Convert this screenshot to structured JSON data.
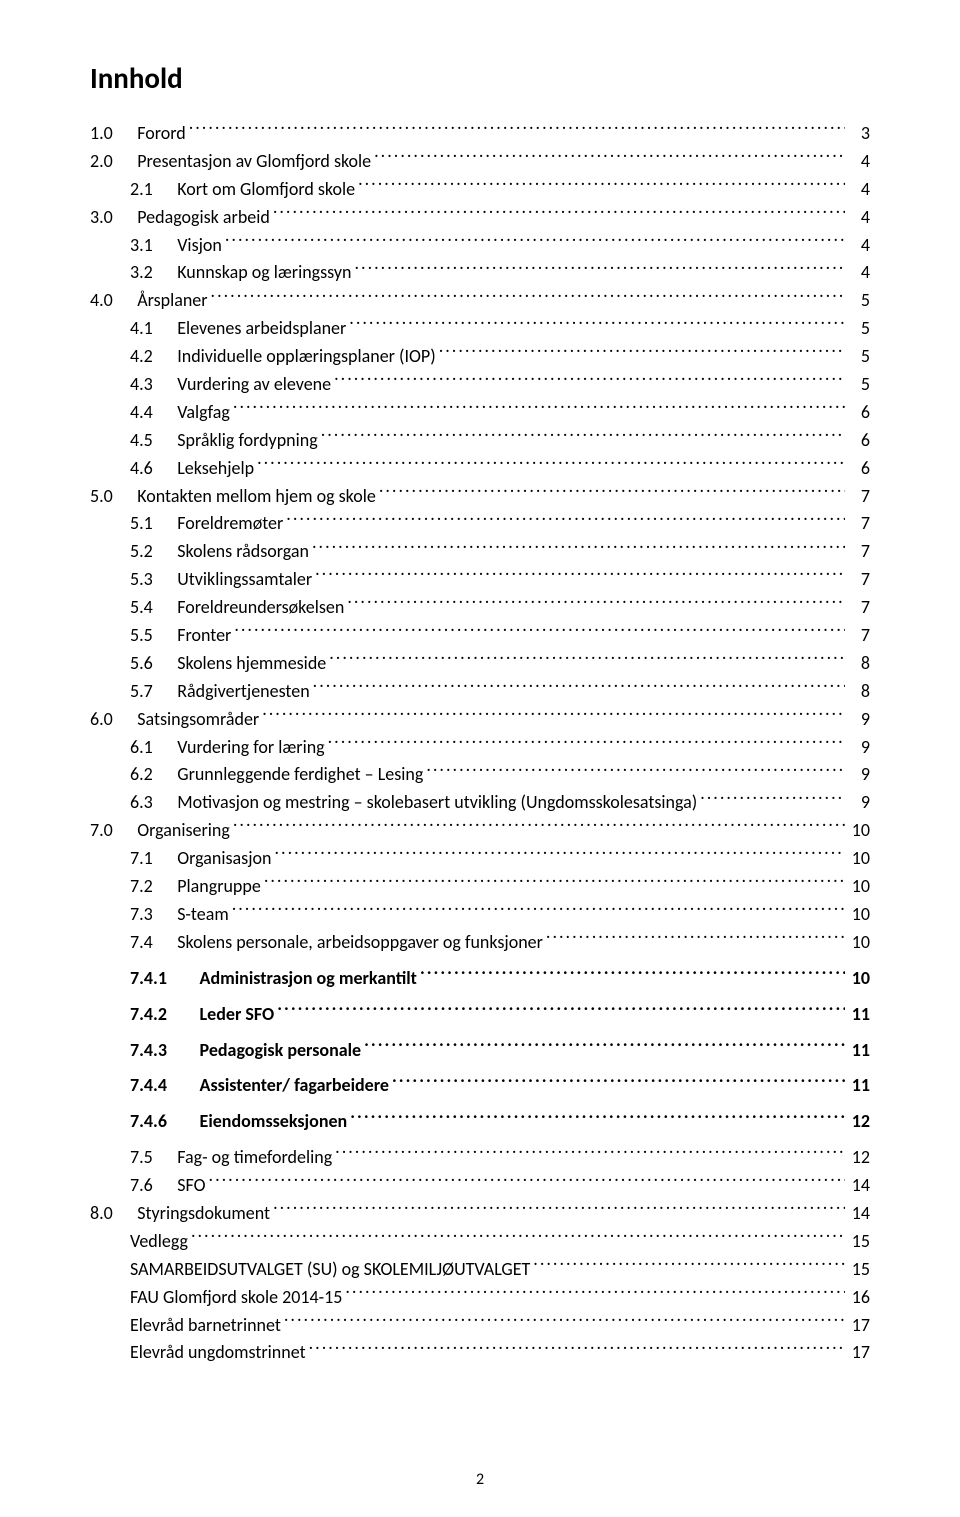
{
  "doc": {
    "title": "Innhold",
    "pageNumber": "2"
  },
  "toc": [
    {
      "indent": 0,
      "bold": false,
      "num": "1.0",
      "gap": "      ",
      "label": "Forord",
      "page": "3"
    },
    {
      "indent": 0,
      "bold": false,
      "num": "2.0",
      "gap": "      ",
      "label": "Presentasjon av Glomfjord skole",
      "page": "4"
    },
    {
      "indent": 1,
      "bold": false,
      "num": "2.1",
      "gap": "      ",
      "label": "Kort om Glomfjord skole",
      "page": "4"
    },
    {
      "indent": 0,
      "bold": false,
      "num": "3.0",
      "gap": "      ",
      "label": "Pedagogisk arbeid",
      "page": "4"
    },
    {
      "indent": 1,
      "bold": false,
      "num": "3.1",
      "gap": "      ",
      "label": "Visjon",
      "page": "4"
    },
    {
      "indent": 1,
      "bold": false,
      "num": "3.2",
      "gap": "      ",
      "label": "Kunnskap og læringssyn",
      "page": "4"
    },
    {
      "indent": 0,
      "bold": false,
      "num": "4.0",
      "gap": "      ",
      "label": "Årsplaner",
      "page": "5"
    },
    {
      "indent": 1,
      "bold": false,
      "num": "4.1",
      "gap": "      ",
      "label": "Elevenes arbeidsplaner",
      "page": "5"
    },
    {
      "indent": 1,
      "bold": false,
      "num": "4.2",
      "gap": "      ",
      "label": "Individuelle opplæringsplaner (IOP)",
      "page": "5"
    },
    {
      "indent": 1,
      "bold": false,
      "num": "4.3",
      "gap": "      ",
      "label": "Vurdering av elevene",
      "page": "5"
    },
    {
      "indent": 1,
      "bold": false,
      "num": "4.4",
      "gap": "      ",
      "label": "Valgfag",
      "page": "6"
    },
    {
      "indent": 1,
      "bold": false,
      "num": "4.5",
      "gap": "      ",
      "label": "Språklig fordypning",
      "page": "6"
    },
    {
      "indent": 1,
      "bold": false,
      "num": "4.6",
      "gap": "      ",
      "label": "Leksehjelp",
      "page": "6"
    },
    {
      "indent": 0,
      "bold": false,
      "num": "5.0",
      "gap": "      ",
      "label": "Kontakten mellom hjem og skole",
      "page": "7"
    },
    {
      "indent": 1,
      "bold": false,
      "num": "5.1",
      "gap": "      ",
      "label": "Foreldremøter",
      "page": "7"
    },
    {
      "indent": 1,
      "bold": false,
      "num": "5.2",
      "gap": "      ",
      "label": "Skolens rådsorgan",
      "page": "7"
    },
    {
      "indent": 1,
      "bold": false,
      "num": "5.3",
      "gap": "      ",
      "label": "Utviklingssamtaler",
      "page": "7"
    },
    {
      "indent": 1,
      "bold": false,
      "num": "5.4",
      "gap": "      ",
      "label": "Foreldreundersøkelsen",
      "page": "7"
    },
    {
      "indent": 1,
      "bold": false,
      "num": "5.5",
      "gap": "      ",
      "label": "Fronter",
      "page": "7"
    },
    {
      "indent": 1,
      "bold": false,
      "num": "5.6",
      "gap": "      ",
      "label": "Skolens hjemmeside",
      "page": "8"
    },
    {
      "indent": 1,
      "bold": false,
      "num": "5.7",
      "gap": "      ",
      "label": "Rådgivertjenesten",
      "page": "8"
    },
    {
      "indent": 0,
      "bold": false,
      "num": "6.0",
      "gap": "      ",
      "label": "Satsingsområder",
      "page": "9"
    },
    {
      "indent": 1,
      "bold": false,
      "num": "6.1",
      "gap": "      ",
      "label": "Vurdering for læring",
      "page": "9"
    },
    {
      "indent": 1,
      "bold": false,
      "num": "6.2",
      "gap": "      ",
      "label": "Grunnleggende ferdighet – Lesing",
      "page": "9"
    },
    {
      "indent": 1,
      "bold": false,
      "num": "6.3",
      "gap": "      ",
      "label": "Motivasjon og mestring – skolebasert utvikling (Ungdomsskolesatsinga)",
      "page": "9"
    },
    {
      "indent": 0,
      "bold": false,
      "num": "7.0",
      "gap": "      ",
      "label": "Organisering",
      "page": "10"
    },
    {
      "indent": 1,
      "bold": false,
      "num": "7.1",
      "gap": "      ",
      "label": "Organisasjon",
      "page": "10"
    },
    {
      "indent": 1,
      "bold": false,
      "num": "7.2",
      "gap": "      ",
      "label": "Plangruppe",
      "page": "10"
    },
    {
      "indent": 1,
      "bold": false,
      "num": "7.3",
      "gap": "      ",
      "label": "S-team",
      "page": "10"
    },
    {
      "indent": 1,
      "bold": false,
      "num": "7.4",
      "gap": "      ",
      "label": "Skolens personale, arbeidsoppgaver og funksjoner",
      "page": "10"
    },
    {
      "indent": 2,
      "bold": true,
      "num": "7.4.1",
      "gap": "        ",
      "label": "Administrasjon og merkantilt",
      "page": "10"
    },
    {
      "indent": 2,
      "bold": true,
      "num": "7.4.2",
      "gap": "        ",
      "label": "Leder SFO",
      "page": "11"
    },
    {
      "indent": 2,
      "bold": true,
      "num": "7.4.3",
      "gap": "        ",
      "label": "Pedagogisk personale",
      "page": "11"
    },
    {
      "indent": 2,
      "bold": true,
      "num": "7.4.4",
      "gap": "        ",
      "label": "Assistenter/ fagarbeidere",
      "page": "11"
    },
    {
      "indent": 2,
      "bold": true,
      "num": "7.4.6",
      "gap": "        ",
      "label": "Eiendomsseksjonen",
      "page": "12"
    },
    {
      "indent": 1,
      "bold": false,
      "num": "7.5",
      "gap": "      ",
      "label": "Fag- og timefordeling",
      "page": "12"
    },
    {
      "indent": 1,
      "bold": false,
      "num": "7.6",
      "gap": "      ",
      "label": "SFO",
      "page": "14"
    },
    {
      "indent": 0,
      "bold": false,
      "num": "8.0",
      "gap": "      ",
      "label": "Styringsdokument",
      "page": "14"
    },
    {
      "indent": 1,
      "bold": false,
      "num": "",
      "gap": "",
      "label": "Vedlegg",
      "page": "15"
    },
    {
      "indent": 1,
      "bold": false,
      "num": "",
      "gap": "",
      "label": "SAMARBEIDSUTVALGET (SU) og SKOLEMILJØUTVALGET",
      "page": "15"
    },
    {
      "indent": 1,
      "bold": false,
      "num": "",
      "gap": "",
      "label": "FAU  Glomfjord skole 2014-15",
      "page": "16"
    },
    {
      "indent": 1,
      "bold": false,
      "num": "",
      "gap": "",
      "label": "Elevråd barnetrinnet",
      "page": "17"
    },
    {
      "indent": 1,
      "bold": false,
      "num": "",
      "gap": "",
      "label": "Elevråd ungdomstrinnet",
      "page": "17"
    }
  ]
}
